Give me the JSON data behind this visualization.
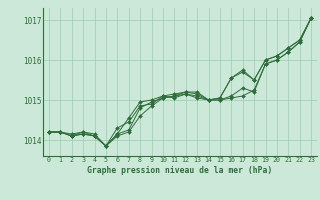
{
  "title": "Graphe pression niveau de la mer (hPa)",
  "bg_color": "#cce8d8",
  "grid_color": "#99ccb0",
  "line_color": "#2d6e3a",
  "marker_color": "#2d6e3a",
  "xlim": [
    -0.5,
    23.5
  ],
  "ylim": [
    1013.6,
    1017.3
  ],
  "yticks": [
    1014,
    1015,
    1016,
    1017
  ],
  "xticks": [
    0,
    1,
    2,
    3,
    4,
    5,
    6,
    7,
    8,
    9,
    10,
    11,
    12,
    13,
    14,
    15,
    16,
    17,
    18,
    19,
    20,
    21,
    22,
    23
  ],
  "series": [
    [
      1014.2,
      1014.2,
      1014.15,
      1014.2,
      1014.15,
      1013.85,
      1014.15,
      1014.25,
      1014.8,
      1014.95,
      1015.05,
      1015.1,
      1015.15,
      1015.05,
      1015.0,
      1015.0,
      1015.05,
      1015.1,
      1015.25,
      1015.9,
      1016.0,
      1016.2,
      1016.45,
      1017.05
    ],
    [
      1014.2,
      1014.2,
      1014.1,
      1014.15,
      1014.1,
      1013.85,
      1014.3,
      1014.45,
      1014.85,
      1014.9,
      1015.1,
      1015.15,
      1015.2,
      1015.2,
      1015.0,
      1015.05,
      1015.55,
      1015.7,
      1015.5,
      1016.0,
      1016.1,
      1016.3,
      1016.5,
      1017.05
    ],
    [
      1014.2,
      1014.2,
      1014.1,
      1014.2,
      1014.1,
      1013.85,
      1014.15,
      1014.55,
      1014.95,
      1015.0,
      1015.1,
      1015.05,
      1015.15,
      1015.1,
      1015.0,
      1015.05,
      1015.55,
      1015.75,
      1015.5,
      1016.0,
      1016.1,
      1016.3,
      1016.5,
      1017.05
    ],
    [
      1014.2,
      1014.2,
      1014.1,
      1014.15,
      1014.1,
      1013.85,
      1014.1,
      1014.2,
      1014.6,
      1014.85,
      1015.05,
      1015.1,
      1015.2,
      1015.15,
      1015.0,
      1015.0,
      1015.1,
      1015.3,
      1015.2,
      1015.9,
      1016.0,
      1016.2,
      1016.45,
      1017.05
    ]
  ]
}
